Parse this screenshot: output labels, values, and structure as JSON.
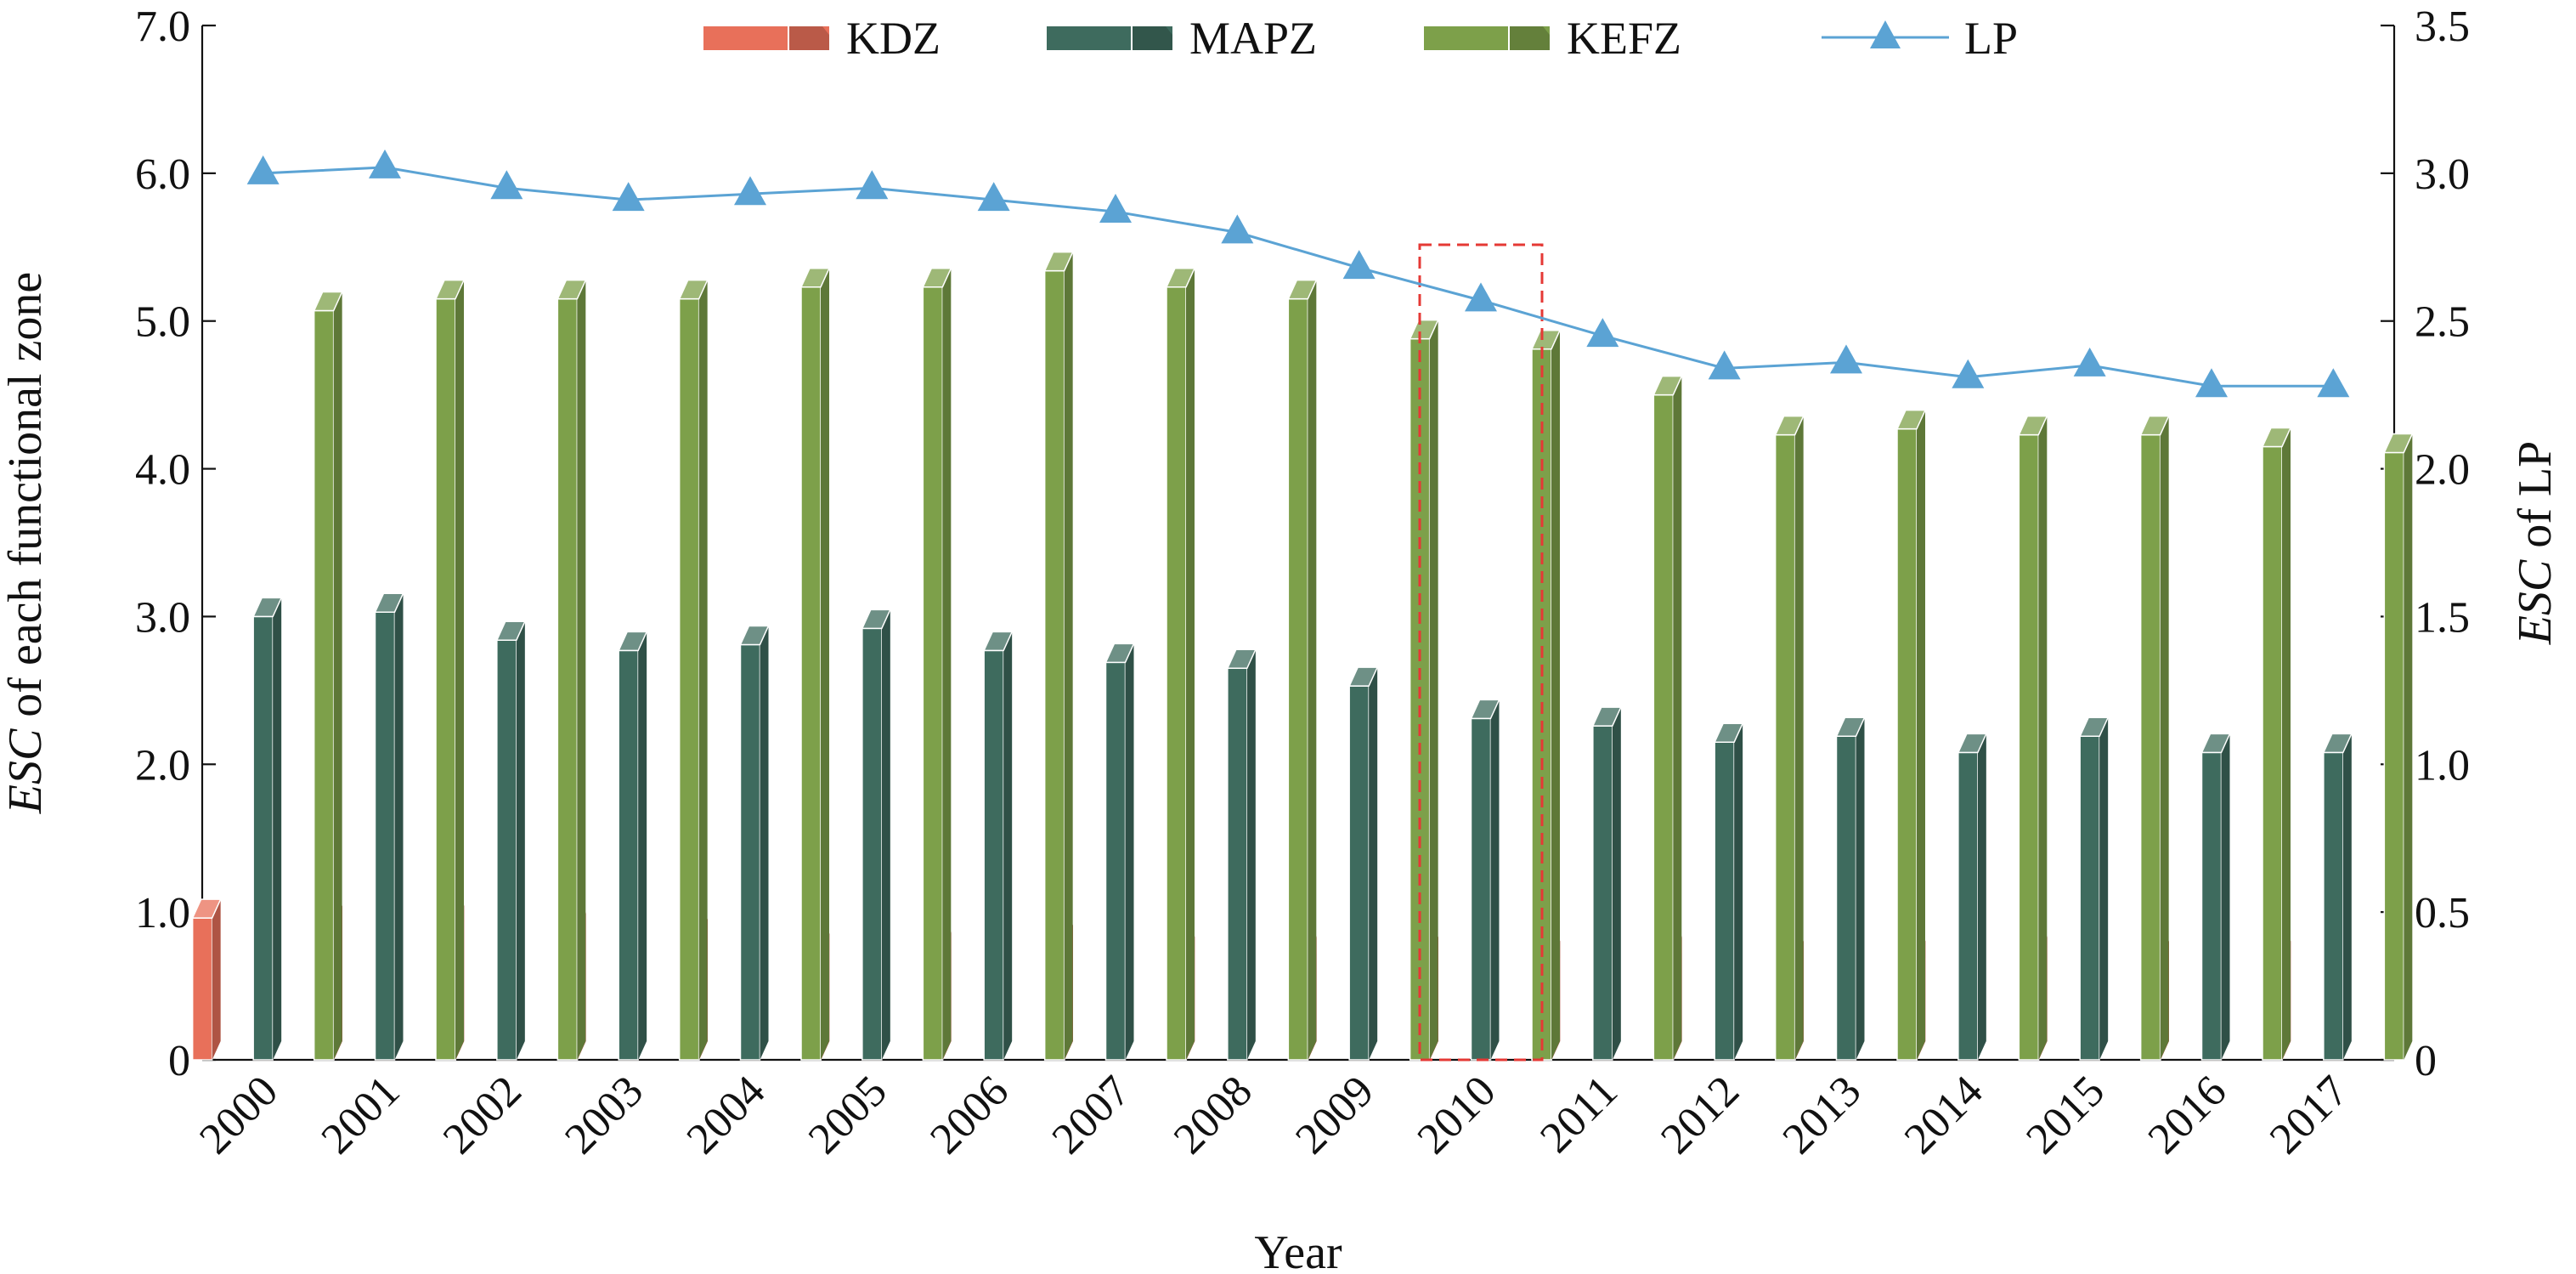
{
  "chart_data": {
    "type": "bar",
    "xlabel": "Year",
    "ylabel_left": {
      "italic": "ESC",
      "rest": " of each functional zone"
    },
    "ylabel_right": {
      "italic": "ESC",
      "rest": " of LP"
    },
    "categories": [
      "2000",
      "2001",
      "2002",
      "2003",
      "2004",
      "2005",
      "2006",
      "2007",
      "2008",
      "2009",
      "2010",
      "2011",
      "2012",
      "2013",
      "2014",
      "2015",
      "2016",
      "2017"
    ],
    "ylim_left": [
      0,
      7.0
    ],
    "yticks_left": [
      "0",
      "1.0",
      "2.0",
      "3.0",
      "4.0",
      "5.0",
      "6.0",
      "7.0"
    ],
    "ylim_right": [
      0,
      3.5
    ],
    "yticks_right": [
      "0",
      "0.5",
      "1.0",
      "1.5",
      "2.0",
      "2.5",
      "3.0",
      "3.5"
    ],
    "series": [
      {
        "name": "KDZ",
        "kind": "bar",
        "axis": "left",
        "color": "#E8705A",
        "values": [
          0.96,
          0.93,
          0.93,
          0.88,
          0.84,
          0.74,
          0.75,
          0.8,
          0.72,
          0.72,
          0.72,
          0.69,
          0.72,
          0.69,
          0.69,
          0.72,
          0.69,
          0.69
        ]
      },
      {
        "name": "MAPZ",
        "kind": "bar",
        "axis": "left",
        "color": "#3E6B5E",
        "values": [
          3.0,
          3.03,
          2.84,
          2.77,
          2.81,
          2.92,
          2.77,
          2.69,
          2.65,
          2.53,
          2.31,
          2.26,
          2.15,
          2.19,
          2.08,
          2.19,
          2.08,
          2.08
        ]
      },
      {
        "name": "KEFZ",
        "kind": "bar",
        "axis": "left",
        "color": "#7DA04A",
        "values": [
          5.07,
          5.15,
          5.15,
          5.15,
          5.23,
          5.23,
          5.34,
          5.23,
          5.15,
          4.88,
          4.81,
          4.5,
          4.23,
          4.27,
          4.23,
          4.23,
          4.15,
          4.11
        ]
      },
      {
        "name": "LP",
        "kind": "line",
        "axis": "right",
        "color": "#5BA3D4",
        "values": [
          3.0,
          3.02,
          2.95,
          2.91,
          2.93,
          2.95,
          2.91,
          2.87,
          2.8,
          2.68,
          2.57,
          2.45,
          2.34,
          2.36,
          2.31,
          2.35,
          2.28,
          2.28
        ]
      }
    ],
    "highlight": {
      "category": "2010",
      "style": "dashed",
      "color": "#E53935"
    },
    "legend": "top"
  }
}
